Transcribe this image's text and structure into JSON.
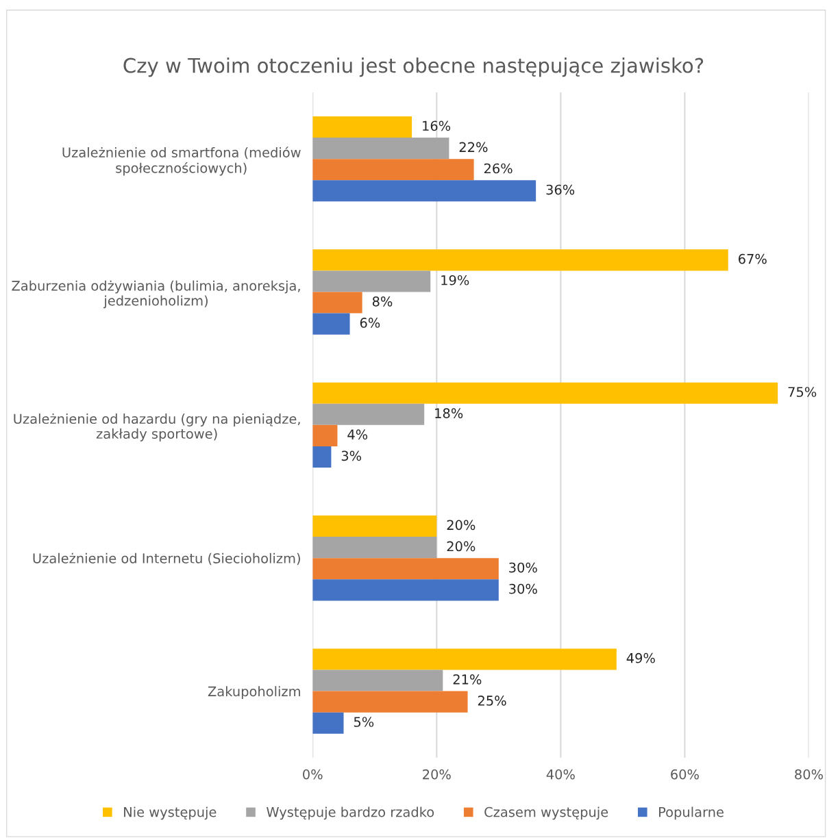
{
  "chart_data": {
    "type": "bar",
    "orientation": "horizontal",
    "title": "Czy w Twoim otoczeniu jest obecne następujące zjawisko?",
    "categories": [
      "Uzależnienie od smartfona (mediów społecznościowych)",
      "Zaburzenia odżywiania (bulimia, anoreksja, jedzenioholizm)",
      "Uzależnienie od hazardu (gry na pieniądze, zakłady sportowe)",
      "Uzależnienie od Internetu (Siecioholizm)",
      "Zakupoholizm"
    ],
    "series": [
      {
        "name": "Nie występuje",
        "color": "#ffc000",
        "values": [
          16,
          67,
          75,
          20,
          49
        ],
        "value_labels": [
          "16%",
          "67%",
          "75%",
          "20%",
          "49%"
        ]
      },
      {
        "name": "Występuje bardzo rzadko",
        "color": "#a5a5a5",
        "values": [
          22,
          19,
          18,
          20,
          21
        ],
        "value_labels": [
          "22%",
          "19%",
          "18%",
          "20%",
          "21%"
        ]
      },
      {
        "name": "Czasem występuje",
        "color": "#ed7d31",
        "values": [
          26,
          8,
          4,
          30,
          25
        ],
        "value_labels": [
          "26%",
          "8%",
          "4%",
          "30%",
          "25%"
        ]
      },
      {
        "name": "Popularne",
        "color": "#4472c4",
        "values": [
          36,
          6,
          3,
          30,
          5
        ],
        "value_labels": [
          "36%",
          "6%",
          "3%",
          "30%",
          "5%"
        ]
      }
    ],
    "xlim": [
      0,
      80
    ],
    "xticks": [
      {
        "value": 0,
        "label": "0%"
      },
      {
        "value": 20,
        "label": "20%"
      },
      {
        "value": 40,
        "label": "40%"
      },
      {
        "value": 60,
        "label": "60%"
      },
      {
        "value": 80,
        "label": "80%"
      }
    ],
    "grid": "x",
    "legend": "bottom"
  }
}
